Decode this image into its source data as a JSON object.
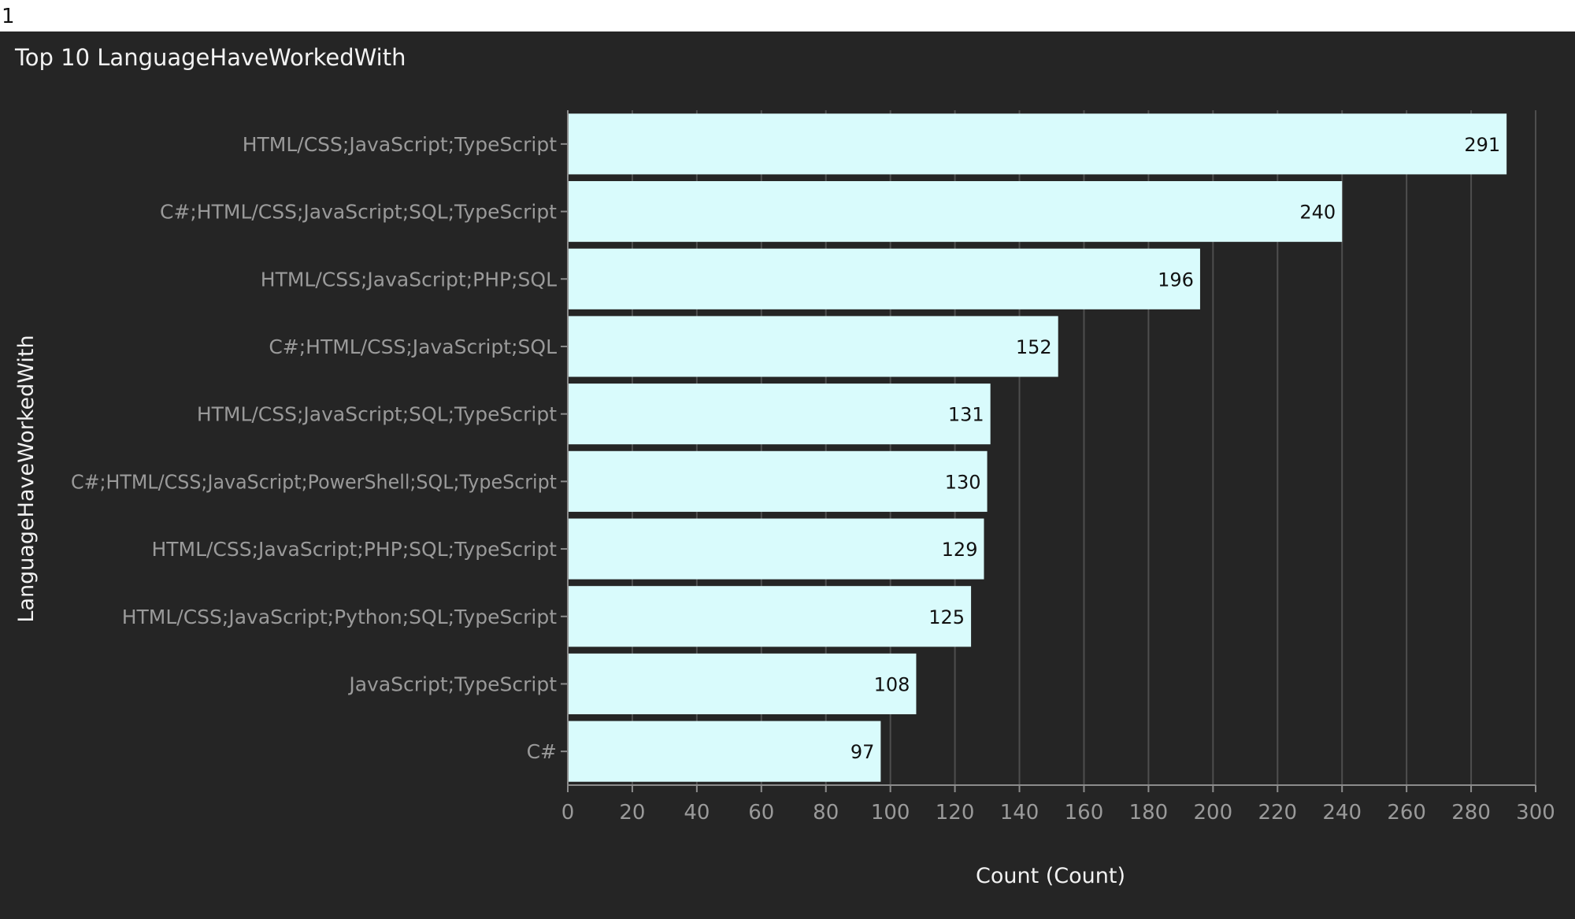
{
  "page": {
    "number_label": "1"
  },
  "panel": {
    "title": "Top 10 LanguageHaveWorkedWith"
  },
  "colors": {
    "panel_background": "#252525",
    "bar_fill": "#d9fbfc",
    "grid_line": "#4e4e4e",
    "axis_line": "#8c8c8c",
    "tick_label": "#9a9a9a",
    "axis_title": "#f2f2f2",
    "data_label": "#111111"
  },
  "chart_data": {
    "type": "bar",
    "orientation": "horizontal",
    "title": "Top 10 LanguageHaveWorkedWith",
    "xlabel": "Count (Count)",
    "ylabel": "LanguageHaveWorkedWith",
    "xlim": [
      0,
      300
    ],
    "xticks": [
      0,
      20,
      40,
      60,
      80,
      100,
      120,
      140,
      160,
      180,
      200,
      220,
      240,
      260,
      280,
      300
    ],
    "grid": true,
    "categories": [
      "HTML/CSS;JavaScript;TypeScript",
      "C#;HTML/CSS;JavaScript;SQL;TypeScript",
      "HTML/CSS;JavaScript;PHP;SQL",
      "C#;HTML/CSS;JavaScript;SQL",
      "HTML/CSS;JavaScript;SQL;TypeScript",
      "C#;HTML/CSS;JavaScript;PowerShell;SQL;TypeScript",
      "HTML/CSS;JavaScript;PHP;SQL;TypeScript",
      "HTML/CSS;JavaScript;Python;SQL;TypeScript",
      "JavaScript;TypeScript",
      "C#"
    ],
    "values": [
      291,
      240,
      196,
      152,
      131,
      130,
      129,
      125,
      108,
      97
    ]
  }
}
